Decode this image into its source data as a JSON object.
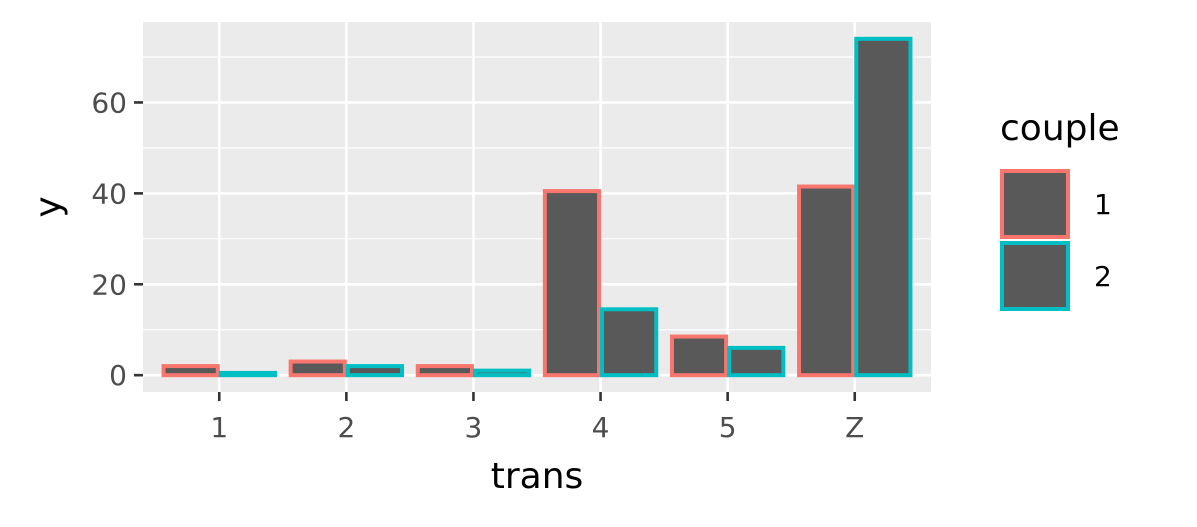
{
  "chart_data": {
    "type": "bar",
    "categories": [
      "1",
      "2",
      "3",
      "4",
      "5",
      "Z"
    ],
    "series": [
      {
        "name": "1",
        "values": [
          2,
          3,
          2,
          40.5,
          8.5,
          41.5
        ],
        "outline_color": "#F8766D"
      },
      {
        "name": "2",
        "values": [
          0.5,
          2,
          1,
          14.5,
          6,
          74
        ],
        "outline_color": "#00BFC4"
      }
    ],
    "bar_fill": "#595959",
    "xlabel": "trans",
    "ylabel": "y",
    "ylim": [
      -3.7,
      77.7
    ],
    "yticks": [
      0,
      20,
      40,
      60
    ],
    "ytick_labels": [
      "0",
      "20",
      "40",
      "60"
    ],
    "legend": {
      "title": "couple",
      "placement": "right"
    },
    "panel_background": "#EBEBEB",
    "grid": true
  }
}
